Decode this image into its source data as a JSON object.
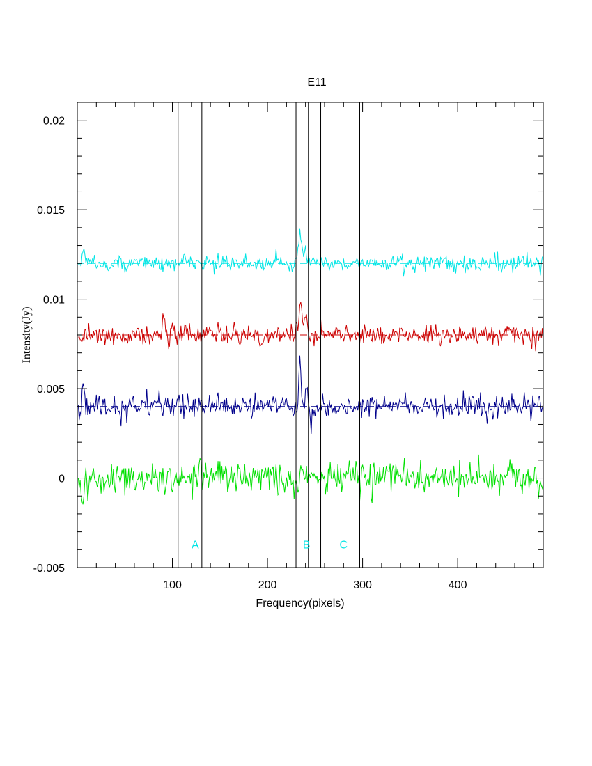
{
  "chart_data": {
    "type": "line",
    "title": "E11",
    "xlabel": "Frequency(pixels)",
    "ylabel": "Intensity(Jy)",
    "xlim": [
      0,
      490
    ],
    "ylim": [
      -0.005,
      0.021
    ],
    "x_ticks": [
      100,
      200,
      300,
      400
    ],
    "x_tick_labels": [
      "100",
      "200",
      "300",
      "400"
    ],
    "y_ticks": [
      -0.005,
      0,
      0.005,
      0.01,
      0.015,
      0.02
    ],
    "y_tick_labels": [
      "-0.005",
      "0",
      "0.005",
      "0.01",
      "0.015",
      "0.02"
    ],
    "grid": false,
    "legend": "none",
    "vertical_lines_x": [
      106,
      131,
      230,
      243,
      256,
      297
    ],
    "region_labels": [
      {
        "text": "A",
        "x": 124,
        "y": -0.0037
      },
      {
        "text": "B",
        "x": 241,
        "y": -0.0037
      },
      {
        "text": "C",
        "x": 280,
        "y": -0.0037
      }
    ],
    "series": [
      {
        "color": "#00e5e5",
        "baseline": 0.012,
        "noise": 0.00022,
        "features": [
          {
            "x": 6,
            "amp": 0.0008
          },
          {
            "x": 113,
            "amp": 0.0004
          },
          {
            "x": 209,
            "amp": 0.0006
          },
          {
            "x": 234,
            "amp": 0.0017,
            "width": 2
          },
          {
            "x": 240,
            "amp": 0.0008
          }
        ]
      },
      {
        "color": "#cc0000",
        "baseline": 0.008,
        "noise": 0.00028,
        "features": [
          {
            "x": 91,
            "amp": 0.0009
          },
          {
            "x": 193,
            "amp": -0.0007
          },
          {
            "x": 235,
            "amp": 0.0018,
            "width": 2
          },
          {
            "x": 241,
            "amp": 0.0008
          },
          {
            "x": 453,
            "amp": 0.0006
          }
        ]
      },
      {
        "color": "#00008b",
        "baseline": 0.004,
        "noise": 0.00032,
        "features": [
          {
            "x": 6,
            "amp": 0.0014
          },
          {
            "x": 207,
            "amp": 0.0008
          },
          {
            "x": 234,
            "amp": 0.0026,
            "width": 1
          },
          {
            "x": 241,
            "amp": 0.0014
          },
          {
            "x": 246,
            "amp": -0.0008
          }
        ]
      },
      {
        "color": "#00e000",
        "baseline": 0.0,
        "noise": 0.00045,
        "features": [
          {
            "x": 6,
            "amp": -0.0014
          },
          {
            "x": 129,
            "amp": 0.0014
          },
          {
            "x": 235,
            "amp": 0.0012
          },
          {
            "x": 233,
            "amp": -0.0011
          },
          {
            "x": 454,
            "amp": 0.001
          }
        ]
      }
    ]
  }
}
